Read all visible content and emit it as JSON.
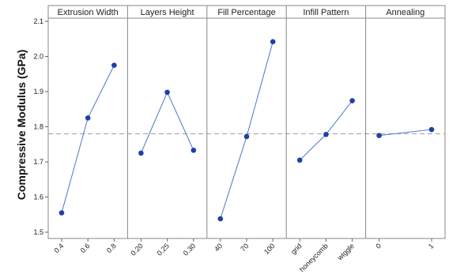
{
  "chart_data": {
    "type": "line",
    "ylabel": "Compressive Modulus (GPa)",
    "ylim": [
      1.5,
      2.1
    ],
    "yticks": [
      "1.5",
      "1.6",
      "1.7",
      "1.8",
      "1.9",
      "2.0",
      "2.1"
    ],
    "reference_line": 1.78,
    "grid": false,
    "line_color": "#4a78c8",
    "marker_color": "#1f3fa8",
    "reference_color": "#999999",
    "panels": [
      {
        "title": "Extrusion Width",
        "categories": [
          "0.4",
          "0.6",
          "0.8"
        ],
        "values": [
          1.555,
          1.825,
          1.975
        ]
      },
      {
        "title": "Layers Height",
        "categories": [
          "0.20",
          "0.25",
          "0.30"
        ],
        "values": [
          1.725,
          1.898,
          1.733
        ]
      },
      {
        "title": "Fill Percentage",
        "categories": [
          "40",
          "70",
          "100"
        ],
        "values": [
          1.538,
          1.772,
          2.042
        ]
      },
      {
        "title": "Infill Pattern",
        "categories": [
          "grid",
          "honeycomb",
          "wiggle"
        ],
        "values": [
          1.705,
          1.778,
          1.874
        ]
      },
      {
        "title": "Annealing",
        "categories": [
          "0",
          "1"
        ],
        "values": [
          1.775,
          1.792
        ]
      }
    ]
  }
}
